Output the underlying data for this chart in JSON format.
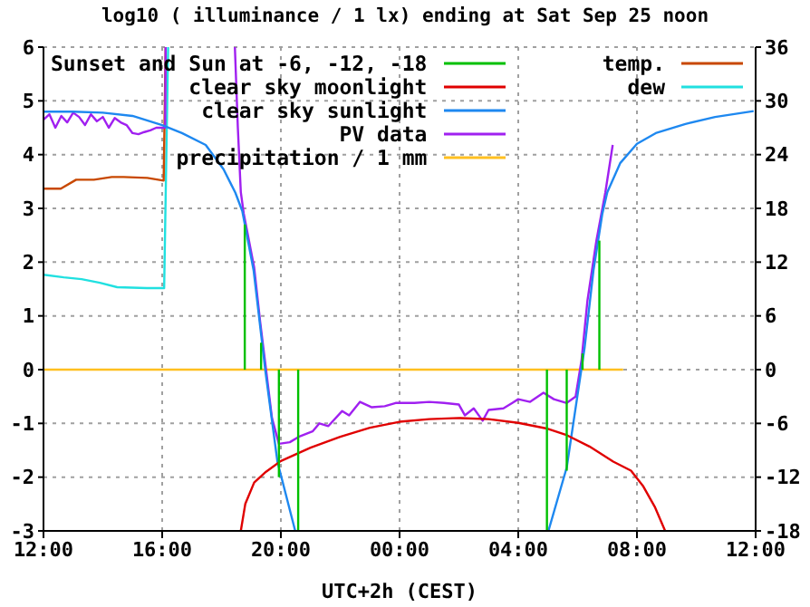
{
  "chart_data": {
    "type": "line",
    "title": "log10 ( illuminance / 1 lx) ending at Sat Sep 25 noon",
    "xlabel": "UTC+2h (CEST)",
    "xlim": [
      "--09-24T12:00",
      "--09-25T12:00"
    ],
    "xticks": [
      {
        "value": "--09-24T12:00",
        "label": "12:00"
      },
      {
        "value": "--09-24T16:00",
        "label": "16:00"
      },
      {
        "value": "--09-24T20:00",
        "label": "20:00"
      },
      {
        "value": "--09-25T00:00",
        "label": "00:00"
      },
      {
        "value": "--09-25T04:00",
        "label": "04:00"
      },
      {
        "value": "--09-25T08:00",
        "label": "08:00"
      },
      {
        "value": "--09-25T12:00",
        "label": "12:00"
      }
    ],
    "ylim": [
      -3,
      6
    ],
    "yticks": [
      -3,
      -2,
      -1,
      0,
      1,
      2,
      3,
      4,
      5,
      6
    ],
    "y2lim": [
      -18,
      36
    ],
    "y2ticks": [
      -18,
      -12,
      -6,
      0,
      6,
      12,
      18,
      24,
      30,
      36
    ],
    "grid": true,
    "legend": "top",
    "line_style": "solid",
    "series": [
      {
        "name": "Sunset and Sun at -6, -12, -18",
        "color": "#00c000",
        "x": [
          "--09-24T18:47",
          "--09-24T18:47"
        ],
        "values": [
          0,
          2.7
        ]
      },
      {
        "color": "#00c000",
        "x": [
          "--09-24T19:20",
          "--09-24T19:20"
        ],
        "values": [
          0,
          0.5
        ]
      },
      {
        "color": "#00c000",
        "x": [
          "--09-24T19:56",
          "--09-24T19:56"
        ],
        "values": [
          0,
          -2
        ]
      },
      {
        "color": "#00c000",
        "x": [
          "--09-24T20:35",
          "--09-24T20:35"
        ],
        "values": [
          0,
          -3
        ]
      },
      {
        "color": "#00c000",
        "x": [
          "--09-25T04:58",
          "--09-25T04:58"
        ],
        "values": [
          0,
          -3
        ]
      },
      {
        "color": "#00c000",
        "x": [
          "--09-25T05:38",
          "--09-25T05:38"
        ],
        "values": [
          0,
          -1.88
        ]
      },
      {
        "color": "#00c000",
        "x": [
          "--09-25T06:10",
          "--09-25T06:10"
        ],
        "values": [
          0,
          0.3
        ]
      },
      {
        "color": "#00c000",
        "x": [
          "--09-25T06:44",
          "--09-25T06:44"
        ],
        "values": [
          0,
          2.4
        ]
      },
      {
        "name": "clear sky moonlight",
        "color": "#e00000",
        "x": [
          "--09-24T18:39",
          "--09-24T18:48",
          "--09-24T19:06",
          "--09-24T19:30",
          "--09-24T20:00",
          "--09-24T21:00",
          "--09-24T22:00",
          "--09-24T23:00",
          "--09-25T00:00",
          "--09-25T01:00",
          "--09-25T02:00",
          "--09-25T03:00",
          "--09-25T04:00",
          "--09-25T05:00",
          "--09-25T05:36",
          "--09-25T06:24",
          "--09-25T07:12",
          "--09-25T07:48",
          "--09-25T08:12",
          "--09-25T08:36",
          "--09-25T08:57"
        ],
        "values": [
          -3,
          -2.5,
          -2.1,
          -1.9,
          -1.7,
          -1.45,
          -1.25,
          -1.08,
          -0.97,
          -0.92,
          -0.9,
          -0.92,
          -0.99,
          -1.1,
          -1.21,
          -1.43,
          -1.71,
          -1.88,
          -2.16,
          -2.55,
          -3
        ]
      },
      {
        "name": "clear sky sunlight",
        "color": "#1e88f0",
        "x": [
          "--09-24T12:00",
          "--09-24T13:00",
          "--09-24T14:00",
          "--09-24T15:00",
          "--09-24T16:00",
          "--09-24T16:40",
          "--09-24T17:28",
          "--09-24T18:04",
          "--09-24T18:28",
          "--09-24T18:42",
          "--09-24T19:05",
          "--09-24T19:29",
          "--09-24T19:53",
          "--09-24T20:29"
        ],
        "values": [
          4.8,
          4.8,
          4.78,
          4.72,
          4.55,
          4.4,
          4.18,
          3.73,
          3.29,
          2.95,
          1.84,
          -0.05,
          -1.71,
          -3
        ]
      },
      {
        "color": "#1e88f0",
        "x": [
          "--09-25T05:01",
          "--09-25T05:38",
          "--09-25T05:56",
          "--09-25T06:14",
          "--09-25T06:32",
          "--09-25T06:50",
          "--09-25T07:00",
          "--09-25T07:26",
          "--09-25T08:00",
          "--09-25T08:38",
          "--09-25T09:38",
          "--09-25T10:38",
          "--09-25T11:56"
        ],
        "values": [
          -3,
          -1.82,
          -0.71,
          0.4,
          1.84,
          2.9,
          3.3,
          3.84,
          4.2,
          4.4,
          4.57,
          4.7,
          4.81
        ]
      },
      {
        "name": "PV data",
        "color": "#a020f0",
        "x": [
          "--09-24T12:00",
          "--09-24T12:12",
          "--09-24T12:24",
          "--09-24T12:36",
          "--09-24T12:48",
          "--09-24T13:00",
          "--09-24T13:12",
          "--09-24T13:24",
          "--09-24T13:36",
          "--09-24T13:48",
          "--09-24T14:00",
          "--09-24T14:12",
          "--09-24T14:24",
          "--09-24T14:36",
          "--09-24T14:48",
          "--09-24T15:00",
          "--09-24T15:12",
          "--09-24T15:24",
          "--09-24T15:36",
          "--09-24T15:48",
          "--09-24T16:00",
          "--09-24T16:06",
          "--09-24T16:07"
        ],
        "values": [
          4.65,
          4.75,
          4.5,
          4.72,
          4.6,
          4.78,
          4.7,
          4.55,
          4.75,
          4.62,
          4.7,
          4.5,
          4.68,
          4.6,
          4.55,
          4.4,
          4.38,
          4.42,
          4.45,
          4.5,
          4.5,
          4.5,
          6
        ]
      },
      {
        "color": "#a020f0",
        "x": [
          "--09-24T18:27",
          "--09-24T18:33",
          "--09-24T18:39",
          "--09-24T18:45",
          "--09-24T19:06",
          "--09-24T19:18",
          "--09-24T19:30",
          "--09-24T19:42",
          "--09-24T19:56",
          "--09-24T20:18",
          "--09-24T20:36",
          "--09-24T21:04",
          "--09-24T21:18",
          "--09-24T21:36",
          "--09-24T22:04",
          "--09-24T22:18",
          "--09-24T22:40",
          "--09-24T23:04",
          "--09-24T23:30",
          "--09-24T23:52",
          "--09-25T00:30",
          "--09-25T01:00",
          "--09-25T01:30",
          "--09-25T02:00",
          "--09-25T02:12",
          "--09-25T02:30",
          "--09-25T02:48",
          "--09-25T03:00",
          "--09-25T03:30",
          "--09-25T03:48",
          "--09-25T04:00",
          "--09-25T04:24",
          "--09-25T04:51",
          "--09-25T05:12",
          "--09-25T05:38",
          "--09-25T05:56",
          "--09-25T06:08",
          "--09-25T06:20",
          "--09-25T06:38",
          "--09-25T06:56",
          "--09-25T07:11"
        ],
        "values": [
          6,
          4.5,
          3.3,
          2.9,
          1.9,
          0.9,
          0,
          -0.9,
          -1.38,
          -1.35,
          -1.25,
          -1.15,
          -1,
          -1.05,
          -0.77,
          -0.85,
          -0.6,
          -0.7,
          -0.68,
          -0.62,
          -0.62,
          -0.6,
          -0.62,
          -0.65,
          -0.85,
          -0.72,
          -0.95,
          -0.75,
          -0.72,
          -0.62,
          -0.55,
          -0.6,
          -0.43,
          -0.55,
          -0.62,
          -0.5,
          0.18,
          1.29,
          2.4,
          3.29,
          4.18
        ]
      },
      {
        "name": "precipitation / 1 mm",
        "color": "#ffc020",
        "x": [
          "--09-24T12:00",
          "--09-25T07:32"
        ],
        "values": [
          0,
          0
        ]
      },
      {
        "name": "temp.",
        "color": "#c84800",
        "axis": "y2",
        "x": [
          "--09-24T12:00",
          "--09-24T12:35",
          "--09-24T13:06",
          "--09-24T13:42",
          "--09-24T14:18",
          "--09-24T14:42",
          "--09-24T15:30",
          "--09-24T16:03",
          "--09-24T16:07"
        ],
        "values": [
          20.2,
          20.2,
          21.2,
          21.2,
          21.5,
          21.5,
          21.4,
          21.1,
          36
        ]
      },
      {
        "name": "dew",
        "color": "#20e0e0",
        "axis": "y2",
        "x": [
          "--09-24T12:00",
          "--09-24T12:41",
          "--09-24T13:17",
          "--09-24T13:54",
          "--09-24T14:29",
          "--09-24T15:29",
          "--09-24T16:04",
          "--09-24T16:12"
        ],
        "values": [
          10.6,
          10.3,
          10.1,
          9.7,
          9.2,
          9.1,
          9.1,
          36
        ]
      }
    ]
  }
}
